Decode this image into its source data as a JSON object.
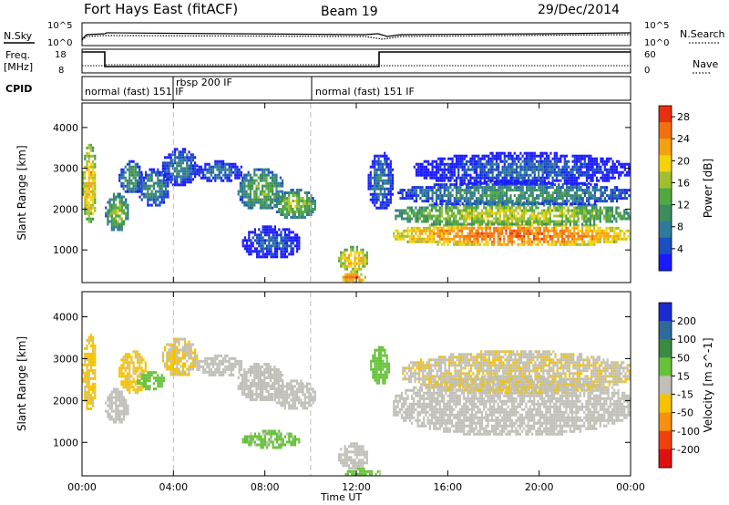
{
  "header": {
    "title": "Fort Hays East (fitACF)",
    "beam": "Beam 19",
    "date": "29/Dec/2014"
  },
  "aux_panels": {
    "noise": {
      "left_label": "N.Sky",
      "right_label": "N.Search",
      "left_ticks": [
        "10^5",
        "10^0"
      ],
      "right_ticks": [
        "10^5",
        "10^0"
      ]
    },
    "freq": {
      "left_label": "Freq.",
      "left_unit": "[MHz]",
      "left_ticks": [
        "18",
        "8"
      ],
      "right_label": "Nave",
      "right_ticks": [
        "60",
        "0"
      ]
    },
    "cpid": {
      "label": "CPID",
      "segments": [
        "normal (fast) 151 IF",
        "rbsp 200 IF",
        "normal (fast) 151 IF"
      ]
    }
  },
  "chart_data": [
    {
      "type": "heatmap",
      "name": "power",
      "ylabel": "Slant Range [km]",
      "xlabel": "Time UT",
      "x_ticks": [
        "00:00",
        "04:00",
        "08:00",
        "12:00",
        "16:00",
        "20:00",
        "00:00"
      ],
      "y_ticks": [
        1000,
        2000,
        3000,
        4000
      ],
      "ylim": [
        200,
        4600
      ],
      "xlim_hours": [
        0,
        24
      ],
      "colorbar": {
        "label": "Power [dB]",
        "ticks": [
          4,
          8,
          12,
          16,
          20,
          24,
          28
        ],
        "range": [
          0,
          30
        ],
        "colors": [
          "#1a1aff",
          "#1a4fbf",
          "#2e7a9a",
          "#3c8c5e",
          "#50a840",
          "#a0c030",
          "#f5d20a",
          "#f5a010",
          "#f07010",
          "#e83010"
        ]
      },
      "blobs": [
        {
          "t0": 0.0,
          "t1": 0.6,
          "r0": 1700,
          "r1": 3600,
          "v": 22
        },
        {
          "t0": 1.0,
          "t1": 2.0,
          "r0": 1500,
          "r1": 2400,
          "v": 16
        },
        {
          "t0": 1.6,
          "t1": 2.6,
          "r0": 2400,
          "r1": 3200,
          "v": 12
        },
        {
          "t0": 2.4,
          "t1": 3.8,
          "r0": 2100,
          "r1": 3000,
          "v": 10
        },
        {
          "t0": 3.5,
          "t1": 5.0,
          "r0": 2600,
          "r1": 3500,
          "v": 9
        },
        {
          "t0": 5.0,
          "t1": 7.0,
          "r0": 2700,
          "r1": 3200,
          "v": 8
        },
        {
          "t0": 6.8,
          "t1": 8.8,
          "r0": 2000,
          "r1": 3000,
          "v": 14
        },
        {
          "t0": 8.4,
          "t1": 10.2,
          "r0": 1800,
          "r1": 2500,
          "v": 16
        },
        {
          "t0": 7.0,
          "t1": 9.5,
          "r0": 800,
          "r1": 1600,
          "v": 6
        },
        {
          "t0": 11.2,
          "t1": 12.5,
          "r0": 500,
          "r1": 1100,
          "v": 22
        },
        {
          "t0": 11.3,
          "t1": 12.4,
          "r0": 200,
          "r1": 500,
          "v": 26
        },
        {
          "t0": 12.5,
          "t1": 13.6,
          "r0": 2000,
          "r1": 3400,
          "v": 8
        },
        {
          "t0": 13.6,
          "t1": 24.0,
          "r0": 1100,
          "r1": 1700,
          "v": 26
        },
        {
          "t0": 13.6,
          "t1": 24.0,
          "r0": 1600,
          "r1": 2200,
          "v": 18
        },
        {
          "t0": 13.8,
          "t1": 24.0,
          "r0": 2100,
          "r1": 2700,
          "v": 11
        },
        {
          "t0": 14.5,
          "t1": 24.0,
          "r0": 2600,
          "r1": 3400,
          "v": 6
        }
      ]
    },
    {
      "type": "heatmap",
      "name": "velocity",
      "ylabel": "Slant Range [km]",
      "xlabel": "Time UT",
      "x_ticks": [
        "00:00",
        "04:00",
        "08:00",
        "12:00",
        "16:00",
        "20:00",
        "00:00"
      ],
      "y_ticks": [
        1000,
        2000,
        3000,
        4000
      ],
      "ylim": [
        200,
        4600
      ],
      "xlim_hours": [
        0,
        24
      ],
      "colorbar": {
        "label": "Velocity [m s^-1]",
        "ticks": [
          200,
          100,
          50,
          15,
          -15,
          -50,
          -100,
          -200
        ],
        "range": [
          -250,
          250
        ],
        "colors": [
          "#1a2bd0",
          "#2e6a9a",
          "#3a8a44",
          "#66c23a",
          "#c0c0b8",
          "#f5c200",
          "#f59010",
          "#f04010",
          "#e01010"
        ]
      },
      "blobs": [
        {
          "t0": 0.0,
          "t1": 0.6,
          "r0": 1800,
          "r1": 3600,
          "v": -40
        },
        {
          "t0": 1.0,
          "t1": 2.0,
          "r0": 1500,
          "r1": 2300,
          "v": 0
        },
        {
          "t0": 1.6,
          "t1": 2.8,
          "r0": 2200,
          "r1": 3200,
          "v": -40
        },
        {
          "t0": 2.4,
          "t1": 3.6,
          "r0": 2300,
          "r1": 2700,
          "v": 60
        },
        {
          "t0": 3.5,
          "t1": 5.0,
          "r0": 2600,
          "r1": 3500,
          "v": -30
        },
        {
          "t0": 5.0,
          "t1": 7.0,
          "r0": 2600,
          "r1": 3100,
          "v": 0
        },
        {
          "t0": 6.8,
          "t1": 8.8,
          "r0": 2000,
          "r1": 2900,
          "v": 0
        },
        {
          "t0": 8.4,
          "t1": 10.2,
          "r0": 1800,
          "r1": 2500,
          "v": 0
        },
        {
          "t0": 7.0,
          "t1": 9.5,
          "r0": 900,
          "r1": 1300,
          "v": 40
        },
        {
          "t0": 11.2,
          "t1": 12.5,
          "r0": 400,
          "r1": 1000,
          "v": 0
        },
        {
          "t0": 11.5,
          "t1": 13.0,
          "r0": 200,
          "r1": 400,
          "v": 40
        },
        {
          "t0": 12.6,
          "t1": 13.4,
          "r0": 2400,
          "r1": 3300,
          "v": 60
        },
        {
          "t0": 13.6,
          "t1": 24.0,
          "r0": 1200,
          "r1": 2600,
          "v": 0
        },
        {
          "t0": 14.0,
          "t1": 24.0,
          "r0": 2200,
          "r1": 3200,
          "v": -20
        }
      ]
    }
  ]
}
